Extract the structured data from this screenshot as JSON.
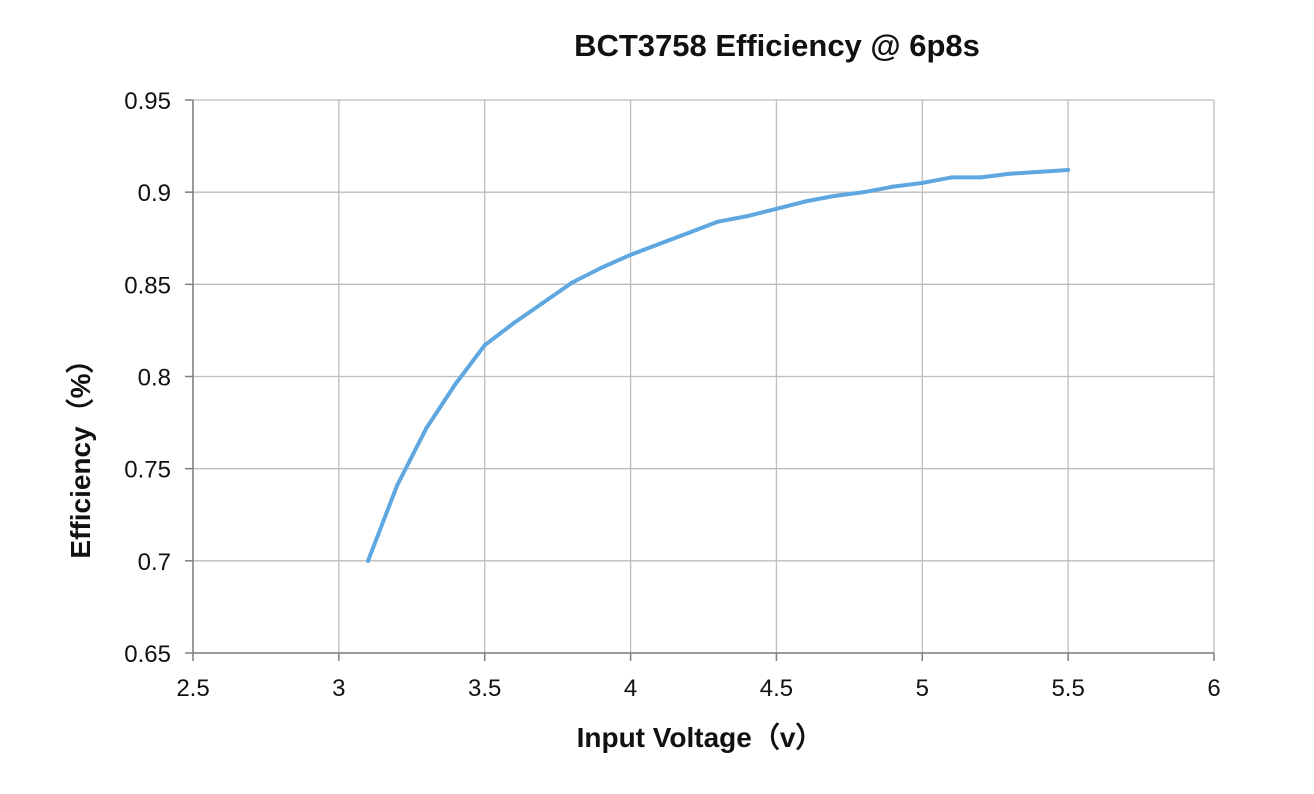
{
  "chart_data": {
    "type": "line",
    "title": "BCT3758 Efficiency @ 6p8s",
    "xlabel": "Input Voltage（v）",
    "ylabel": "Efficiency（%）",
    "xlim": [
      2.5,
      6
    ],
    "ylim": [
      0.65,
      0.95
    ],
    "x_ticks": [
      "2.5",
      "3",
      "3.5",
      "4",
      "4.5",
      "5",
      "5.5",
      "6"
    ],
    "y_ticks": [
      "0.95",
      "0.9",
      "0.85",
      "0.8",
      "0.75",
      "0.7",
      "0.65"
    ],
    "grid": true,
    "legend": false,
    "series": [
      {
        "color": "#5ea7e0",
        "x": [
          3.1,
          3.2,
          3.3,
          3.4,
          3.5,
          3.6,
          3.7,
          3.8,
          3.9,
          4.0,
          4.1,
          4.2,
          4.3,
          4.4,
          4.5,
          4.6,
          4.7,
          4.8,
          4.9,
          5.0,
          5.1,
          5.2,
          5.3,
          5.4,
          5.5
        ],
        "values": [
          0.7,
          0.741,
          0.772,
          0.796,
          0.817,
          0.829,
          0.84,
          0.851,
          0.859,
          0.866,
          0.872,
          0.878,
          0.884,
          0.887,
          0.891,
          0.895,
          0.898,
          0.9,
          0.903,
          0.905,
          0.908,
          0.908,
          0.91,
          0.911,
          0.912
        ]
      }
    ]
  }
}
